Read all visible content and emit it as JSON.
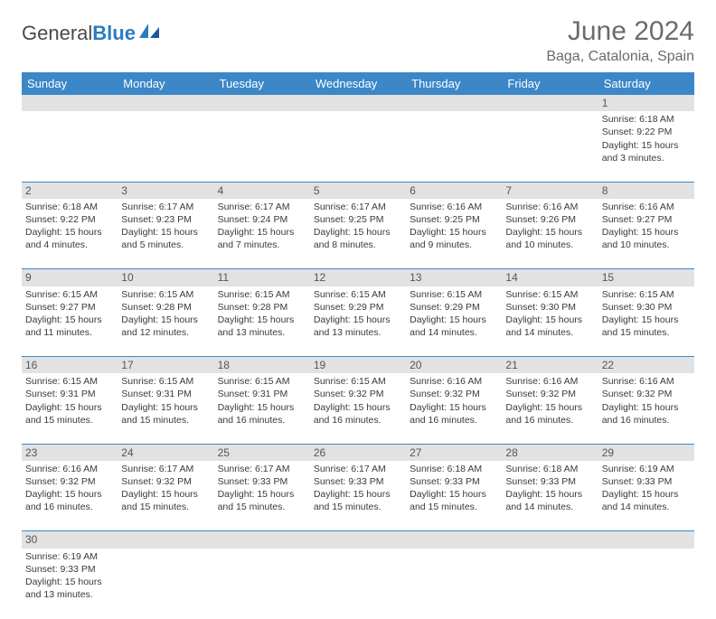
{
  "logo": {
    "text1": "General",
    "text2": "Blue"
  },
  "title": "June 2024",
  "location": "Baga, Catalonia, Spain",
  "colors": {
    "header_bg": "#3b87c8",
    "header_text": "#ffffff",
    "daynum_bg": "#e2e2e2",
    "body_text": "#3a3a3a",
    "rule": "#3b87c8"
  },
  "weekdays": [
    "Sunday",
    "Monday",
    "Tuesday",
    "Wednesday",
    "Thursday",
    "Friday",
    "Saturday"
  ],
  "weeks": [
    {
      "nums": [
        "",
        "",
        "",
        "",
        "",
        "",
        "1"
      ],
      "cells": [
        null,
        null,
        null,
        null,
        null,
        null,
        {
          "sunrise": "6:18 AM",
          "sunset": "9:22 PM",
          "daylight": "15 hours and 3 minutes."
        }
      ]
    },
    {
      "nums": [
        "2",
        "3",
        "4",
        "5",
        "6",
        "7",
        "8"
      ],
      "cells": [
        {
          "sunrise": "6:18 AM",
          "sunset": "9:22 PM",
          "daylight": "15 hours and 4 minutes."
        },
        {
          "sunrise": "6:17 AM",
          "sunset": "9:23 PM",
          "daylight": "15 hours and 5 minutes."
        },
        {
          "sunrise": "6:17 AM",
          "sunset": "9:24 PM",
          "daylight": "15 hours and 7 minutes."
        },
        {
          "sunrise": "6:17 AM",
          "sunset": "9:25 PM",
          "daylight": "15 hours and 8 minutes."
        },
        {
          "sunrise": "6:16 AM",
          "sunset": "9:25 PM",
          "daylight": "15 hours and 9 minutes."
        },
        {
          "sunrise": "6:16 AM",
          "sunset": "9:26 PM",
          "daylight": "15 hours and 10 minutes."
        },
        {
          "sunrise": "6:16 AM",
          "sunset": "9:27 PM",
          "daylight": "15 hours and 10 minutes."
        }
      ]
    },
    {
      "nums": [
        "9",
        "10",
        "11",
        "12",
        "13",
        "14",
        "15"
      ],
      "cells": [
        {
          "sunrise": "6:15 AM",
          "sunset": "9:27 PM",
          "daylight": "15 hours and 11 minutes."
        },
        {
          "sunrise": "6:15 AM",
          "sunset": "9:28 PM",
          "daylight": "15 hours and 12 minutes."
        },
        {
          "sunrise": "6:15 AM",
          "sunset": "9:28 PM",
          "daylight": "15 hours and 13 minutes."
        },
        {
          "sunrise": "6:15 AM",
          "sunset": "9:29 PM",
          "daylight": "15 hours and 13 minutes."
        },
        {
          "sunrise": "6:15 AM",
          "sunset": "9:29 PM",
          "daylight": "15 hours and 14 minutes."
        },
        {
          "sunrise": "6:15 AM",
          "sunset": "9:30 PM",
          "daylight": "15 hours and 14 minutes."
        },
        {
          "sunrise": "6:15 AM",
          "sunset": "9:30 PM",
          "daylight": "15 hours and 15 minutes."
        }
      ]
    },
    {
      "nums": [
        "16",
        "17",
        "18",
        "19",
        "20",
        "21",
        "22"
      ],
      "cells": [
        {
          "sunrise": "6:15 AM",
          "sunset": "9:31 PM",
          "daylight": "15 hours and 15 minutes."
        },
        {
          "sunrise": "6:15 AM",
          "sunset": "9:31 PM",
          "daylight": "15 hours and 15 minutes."
        },
        {
          "sunrise": "6:15 AM",
          "sunset": "9:31 PM",
          "daylight": "15 hours and 16 minutes."
        },
        {
          "sunrise": "6:15 AM",
          "sunset": "9:32 PM",
          "daylight": "15 hours and 16 minutes."
        },
        {
          "sunrise": "6:16 AM",
          "sunset": "9:32 PM",
          "daylight": "15 hours and 16 minutes."
        },
        {
          "sunrise": "6:16 AM",
          "sunset": "9:32 PM",
          "daylight": "15 hours and 16 minutes."
        },
        {
          "sunrise": "6:16 AM",
          "sunset": "9:32 PM",
          "daylight": "15 hours and 16 minutes."
        }
      ]
    },
    {
      "nums": [
        "23",
        "24",
        "25",
        "26",
        "27",
        "28",
        "29"
      ],
      "cells": [
        {
          "sunrise": "6:16 AM",
          "sunset": "9:32 PM",
          "daylight": "15 hours and 16 minutes."
        },
        {
          "sunrise": "6:17 AM",
          "sunset": "9:32 PM",
          "daylight": "15 hours and 15 minutes."
        },
        {
          "sunrise": "6:17 AM",
          "sunset": "9:33 PM",
          "daylight": "15 hours and 15 minutes."
        },
        {
          "sunrise": "6:17 AM",
          "sunset": "9:33 PM",
          "daylight": "15 hours and 15 minutes."
        },
        {
          "sunrise": "6:18 AM",
          "sunset": "9:33 PM",
          "daylight": "15 hours and 15 minutes."
        },
        {
          "sunrise": "6:18 AM",
          "sunset": "9:33 PM",
          "daylight": "15 hours and 14 minutes."
        },
        {
          "sunrise": "6:19 AM",
          "sunset": "9:33 PM",
          "daylight": "15 hours and 14 minutes."
        }
      ]
    },
    {
      "nums": [
        "30",
        "",
        "",
        "",
        "",
        "",
        ""
      ],
      "cells": [
        {
          "sunrise": "6:19 AM",
          "sunset": "9:33 PM",
          "daylight": "15 hours and 13 minutes."
        },
        null,
        null,
        null,
        null,
        null,
        null
      ]
    }
  ],
  "labels": {
    "sunrise": "Sunrise: ",
    "sunset": "Sunset: ",
    "daylight": "Daylight: "
  }
}
